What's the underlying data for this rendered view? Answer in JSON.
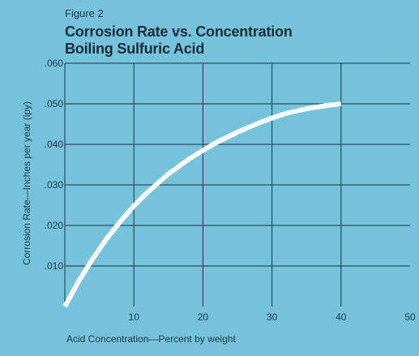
{
  "figure_label": "Figure 2",
  "title_line_1": "Corrosion Rate vs. Concentration",
  "title_line_2": "Boiling Sulfuric Acid",
  "colors": {
    "panel": "#74c2dc",
    "curve": "#ffffff",
    "grid": "#1d3340",
    "text": "#243845"
  },
  "chart_data": {
    "type": "line",
    "title": "Corrosion Rate vs. Concentration Boiling Sulfuric Acid",
    "xlabel": "Acid Concentration—Percent by weight",
    "ylabel": "Corrosion Rate—Inches per year (ipy)",
    "xlim": [
      0,
      50
    ],
    "ylim": [
      0,
      0.06
    ],
    "x_ticks": [
      10,
      20,
      30,
      40,
      50
    ],
    "x_tick_labels": [
      "10",
      "20",
      "30",
      "40",
      "50"
    ],
    "y_ticks": [
      0.01,
      0.02,
      0.03,
      0.04,
      0.05,
      0.06
    ],
    "y_tick_labels": [
      ".010",
      ".020",
      ".030",
      ".040",
      ".050",
      ".060"
    ],
    "grid": true,
    "series": [
      {
        "x": [
          0,
          2,
          4,
          6,
          8,
          10,
          12,
          15,
          18,
          20,
          22,
          25,
          28,
          30,
          32,
          35,
          38,
          40
        ],
        "y": [
          0.0,
          0.0062,
          0.0117,
          0.0166,
          0.0209,
          0.0248,
          0.0282,
          0.0327,
          0.0364,
          0.0385,
          0.0405,
          0.043,
          0.0452,
          0.0465,
          0.0476,
          0.0488,
          0.0496,
          0.05
        ]
      }
    ]
  }
}
